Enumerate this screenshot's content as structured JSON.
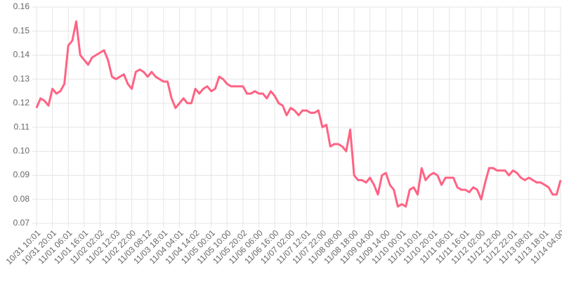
{
  "chart_data": {
    "type": "line",
    "categories": [
      "10/31 10:01",
      null,
      null,
      null,
      "10/31 20:01",
      null,
      null,
      null,
      "11/01 06:01",
      null,
      null,
      null,
      "11/01 16:01",
      null,
      null,
      null,
      "11/02 02:02",
      null,
      null,
      null,
      "11/02 12:03",
      null,
      null,
      null,
      "11/02 22:00",
      null,
      null,
      null,
      "11/03 08:12",
      null,
      null,
      null,
      "11/03 18:01",
      null,
      null,
      null,
      "11/04 04:01",
      null,
      null,
      null,
      "11/04 14:02",
      null,
      null,
      null,
      "11/05 00:01",
      null,
      null,
      null,
      "11/05 10:00",
      null,
      null,
      null,
      "11/05 20:02",
      null,
      null,
      null,
      "11/06 06:00",
      null,
      null,
      null,
      "11/06 16:00",
      null,
      null,
      null,
      "11/07 02:00",
      null,
      null,
      null,
      "11/07 12:01",
      null,
      null,
      null,
      "11/07 22:00",
      null,
      null,
      null,
      "11/08 08:00",
      null,
      null,
      null,
      "11/08 18:00",
      null,
      null,
      null,
      "11/09 04:00",
      null,
      null,
      null,
      "11/09 14:00",
      null,
      null,
      null,
      "11/10 00:01",
      null,
      null,
      null,
      "11/10 10:01",
      null,
      null,
      null,
      "11/10 20:01",
      null,
      null,
      null,
      "11/11 06:01",
      null,
      null,
      null,
      "11/11 16:01",
      null,
      null,
      null,
      "11/12 02:00",
      null,
      null,
      null,
      "11/12 12:00",
      null,
      null,
      null,
      "11/12 22:01",
      null,
      null,
      null,
      "11/13 08:01",
      null,
      null,
      null,
      "11/13 18:01",
      null,
      null,
      null,
      "11/14 04:00"
    ],
    "series": [
      {
        "color": "#ff6384",
        "values": [
          0.118,
          0.122,
          0.121,
          0.119,
          0.126,
          0.124,
          0.125,
          0.128,
          0.144,
          0.146,
          0.154,
          0.14,
          0.138,
          0.136,
          0.139,
          0.14,
          0.141,
          0.142,
          0.138,
          0.131,
          0.13,
          0.131,
          0.132,
          0.128,
          0.126,
          0.133,
          0.134,
          0.133,
          0.131,
          0.133,
          0.131,
          0.13,
          0.129,
          0.129,
          0.122,
          0.118,
          0.12,
          0.122,
          0.12,
          0.12,
          0.126,
          0.124,
          0.126,
          0.127,
          0.125,
          0.126,
          0.131,
          0.13,
          0.128,
          0.127,
          0.127,
          0.127,
          0.127,
          0.124,
          0.124,
          0.125,
          0.124,
          0.124,
          0.122,
          0.125,
          0.123,
          0.12,
          0.119,
          0.115,
          0.118,
          0.117,
          0.115,
          0.117,
          0.117,
          0.116,
          0.116,
          0.117,
          0.11,
          0.111,
          0.102,
          0.103,
          0.103,
          0.102,
          0.1,
          0.109,
          0.09,
          0.088,
          0.088,
          0.087,
          0.089,
          0.086,
          0.082,
          0.09,
          0.091,
          0.086,
          0.084,
          0.077,
          0.078,
          0.077,
          0.084,
          0.085,
          0.082,
          0.093,
          0.088,
          0.09,
          0.091,
          0.09,
          0.086,
          0.089,
          0.089,
          0.089,
          0.085,
          0.084,
          0.084,
          0.083,
          0.085,
          0.084,
          0.08,
          0.087,
          0.093,
          0.093,
          0.092,
          0.092,
          0.092,
          0.09,
          0.092,
          0.091,
          0.089,
          0.088,
          0.089,
          0.088,
          0.087,
          0.087,
          0.086,
          0.085,
          0.082,
          0.082,
          0.088
        ]
      }
    ],
    "ylim": [
      0.07,
      0.16
    ],
    "yticks": [
      0.07,
      0.08,
      0.09,
      {
        "value": 0.1,
        "label": "0.10"
      },
      0.11,
      0.12,
      0.13,
      0.14,
      0.15,
      0.16
    ],
    "grid": true
  }
}
